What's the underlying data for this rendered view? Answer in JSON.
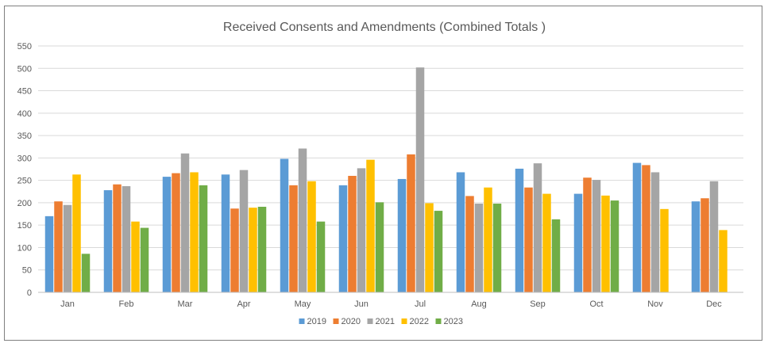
{
  "chart_data": {
    "type": "bar",
    "title": "Received Consents and Amendments (Combined Totals )",
    "xlabel": "",
    "ylabel": "",
    "ylim": [
      0,
      550
    ],
    "yticks": [
      0,
      50,
      100,
      150,
      200,
      250,
      300,
      350,
      400,
      450,
      500,
      550
    ],
    "grid": true,
    "legend_position": "bottom",
    "categories": [
      "Jan",
      "Feb",
      "Mar",
      "Apr",
      "May",
      "Jun",
      "Jul",
      "Aug",
      "Sep",
      "Oct",
      "Nov",
      "Dec"
    ],
    "series": [
      {
        "name": "2019",
        "color": "#5b9bd5",
        "values": [
          170,
          228,
          258,
          263,
          298,
          239,
          253,
          268,
          276,
          220,
          289,
          203
        ]
      },
      {
        "name": "2020",
        "color": "#ed7d31",
        "values": [
          203,
          241,
          266,
          187,
          239,
          260,
          308,
          215,
          234,
          256,
          284,
          210
        ]
      },
      {
        "name": "2021",
        "color": "#a5a5a5",
        "values": [
          195,
          237,
          310,
          273,
          321,
          277,
          502,
          198,
          288,
          251,
          268,
          248
        ]
      },
      {
        "name": "2022",
        "color": "#ffc000",
        "values": [
          263,
          158,
          268,
          189,
          248,
          296,
          199,
          234,
          220,
          216,
          186,
          139
        ]
      },
      {
        "name": "2023",
        "color": "#70ad47",
        "values": [
          86,
          144,
          239,
          191,
          158,
          201,
          182,
          198,
          163,
          205,
          null,
          null
        ]
      }
    ]
  }
}
